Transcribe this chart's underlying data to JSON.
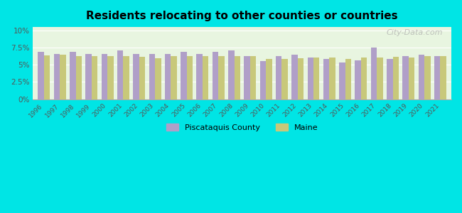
{
  "title": "Residents relocating to other counties or countries",
  "years": [
    1996,
    1997,
    1998,
    1999,
    2000,
    2001,
    2002,
    2003,
    2004,
    2005,
    2006,
    2007,
    2008,
    2009,
    2010,
    2011,
    2012,
    2013,
    2014,
    2015,
    2016,
    2017,
    2018,
    2019,
    2020,
    2021
  ],
  "piscataquis": [
    6.9,
    6.6,
    6.9,
    6.6,
    6.6,
    7.1,
    6.6,
    6.6,
    6.6,
    6.9,
    6.6,
    6.9,
    7.1,
    6.3,
    5.5,
    6.3,
    6.5,
    6.1,
    5.9,
    5.3,
    5.6,
    7.5,
    5.8,
    6.3,
    6.5,
    6.3
  ],
  "maine": [
    6.4,
    6.5,
    6.3,
    6.3,
    6.3,
    6.3,
    6.2,
    6.0,
    6.3,
    6.3,
    6.3,
    6.3,
    6.3,
    6.3,
    5.9,
    5.9,
    6.0,
    6.1,
    6.1,
    5.9,
    6.1,
    6.1,
    6.2,
    6.1,
    6.3,
    6.3
  ],
  "piscataquis_color": "#b09fc8",
  "maine_color": "#c8c87a",
  "background_color": "#00e5e5",
  "plot_bg_top": "#e8f5e8",
  "plot_bg_bottom": "#f0fff0",
  "yticks": [
    0,
    2.5,
    5.0,
    7.5,
    10.0
  ],
  "ylabels": [
    "0%",
    "2.5%",
    "5%",
    "7.5%",
    "10%"
  ],
  "ylim": [
    0,
    10.5
  ],
  "watermark": "City-Data.com"
}
